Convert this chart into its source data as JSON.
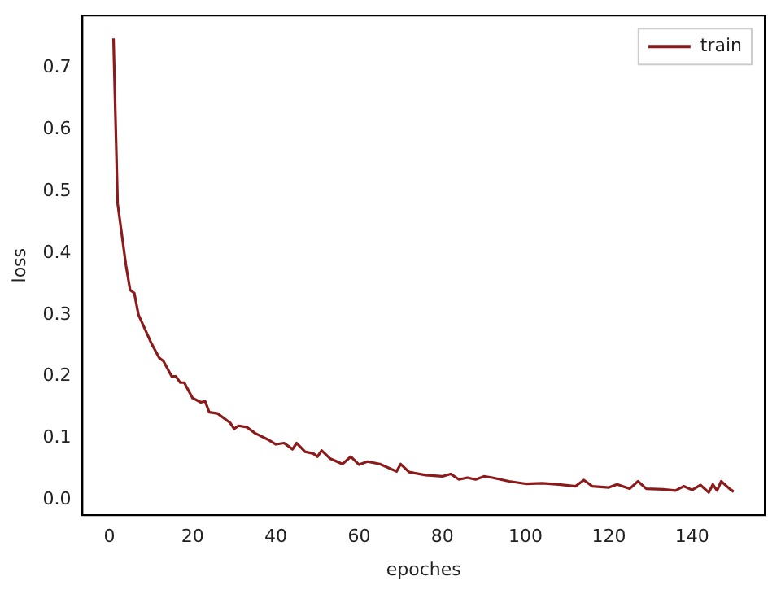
{
  "chart_data": {
    "type": "line",
    "xlabel": "epoches",
    "ylabel": "loss",
    "xlim": [
      -6.45,
      157.45
    ],
    "ylim": [
      -0.025,
      0.785
    ],
    "xticks": [
      0,
      20,
      40,
      60,
      80,
      100,
      120,
      140
    ],
    "yticks": [
      {
        "value": 0,
        "label": "0.0"
      },
      0.1,
      0.2,
      0.3,
      0.4,
      0.5,
      0.6,
      0.7
    ],
    "grid": false,
    "legend": "top right",
    "marker": "none",
    "line_style": "solid",
    "series": [
      {
        "name": "train",
        "color": "#8b1a1a",
        "x": [
          1,
          2,
          3,
          4,
          5,
          6,
          7,
          8,
          10,
          12,
          13,
          15,
          16,
          17,
          18,
          20,
          22,
          23,
          24,
          26,
          28,
          29,
          30,
          31,
          33,
          35,
          38,
          40,
          42,
          44,
          45,
          47,
          49,
          50,
          51,
          53,
          56,
          58,
          60,
          62,
          65,
          69,
          70,
          72,
          76,
          80,
          82,
          84,
          86,
          88,
          90,
          92,
          96,
          100,
          104,
          108,
          112,
          114,
          116,
          120,
          122,
          125,
          127,
          129,
          133,
          136,
          138,
          140,
          142,
          144,
          145,
          146,
          147,
          149,
          150
        ],
        "values": [
          0.748,
          0.48,
          0.43,
          0.38,
          0.34,
          0.335,
          0.3,
          0.285,
          0.255,
          0.23,
          0.225,
          0.2,
          0.2,
          0.19,
          0.19,
          0.165,
          0.158,
          0.16,
          0.142,
          0.14,
          0.13,
          0.125,
          0.115,
          0.12,
          0.118,
          0.108,
          0.098,
          0.09,
          0.092,
          0.082,
          0.092,
          0.078,
          0.075,
          0.07,
          0.08,
          0.067,
          0.058,
          0.07,
          0.057,
          0.062,
          0.058,
          0.046,
          0.058,
          0.045,
          0.04,
          0.038,
          0.042,
          0.033,
          0.036,
          0.033,
          0.038,
          0.036,
          0.03,
          0.026,
          0.027,
          0.025,
          0.022,
          0.032,
          0.022,
          0.02,
          0.025,
          0.018,
          0.03,
          0.018,
          0.017,
          0.015,
          0.022,
          0.016,
          0.024,
          0.012,
          0.025,
          0.015,
          0.03,
          0.018,
          0.013
        ]
      }
    ]
  }
}
